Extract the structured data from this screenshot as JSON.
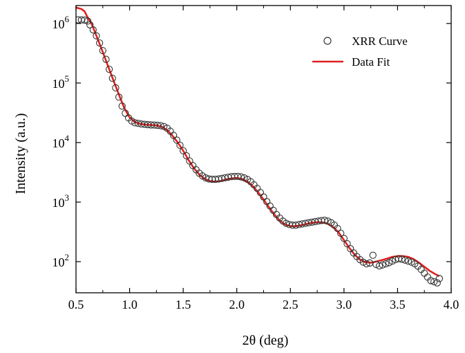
{
  "chart_data": {
    "type": "scatter",
    "xlabel": "2θ (deg)",
    "ylabel": "Intensity (a.u.)",
    "xlim": [
      0.5,
      4.0
    ],
    "ylim": [
      30,
      2000000
    ],
    "yscale": "log",
    "grid": false,
    "legend_position": "top-right",
    "x_ticks": [
      {
        "value": 0.5,
        "label": "0.5"
      },
      {
        "value": 1.0,
        "label": "1.0"
      },
      {
        "value": 1.5,
        "label": "1.5"
      },
      {
        "value": 2.0,
        "label": "2.0"
      },
      {
        "value": 2.5,
        "label": "2.5"
      },
      {
        "value": 3.0,
        "label": "3.0"
      },
      {
        "value": 3.5,
        "label": "3.5"
      },
      {
        "value": 4.0,
        "label": "4.0"
      }
    ],
    "y_ticks": [
      {
        "value": 100,
        "base": "10",
        "exp": "2"
      },
      {
        "value": 1000,
        "base": "10",
        "exp": "3"
      },
      {
        "value": 10000,
        "base": "10",
        "exp": "4"
      },
      {
        "value": 100000,
        "base": "10",
        "exp": "5"
      },
      {
        "value": 1000000,
        "base": "10",
        "exp": "6"
      }
    ],
    "series": [
      {
        "name": "XRR Curve",
        "kind": "scatter",
        "marker": "open-circle",
        "color": "#333333",
        "points": [
          [
            0.52,
            1150000
          ],
          [
            0.55,
            1150000
          ],
          [
            0.58,
            1140000
          ],
          [
            0.61,
            1100000
          ],
          [
            0.63,
            950000
          ],
          [
            0.66,
            780000
          ],
          [
            0.69,
            620000
          ],
          [
            0.72,
            470000
          ],
          [
            0.75,
            350000
          ],
          [
            0.78,
            250000
          ],
          [
            0.81,
            170000
          ],
          [
            0.84,
            120000
          ],
          [
            0.87,
            83000
          ],
          [
            0.9,
            58000
          ],
          [
            0.93,
            41000
          ],
          [
            0.96,
            31000
          ],
          [
            0.99,
            26000
          ],
          [
            1.02,
            23000
          ],
          [
            1.05,
            21500
          ],
          [
            1.08,
            21000
          ],
          [
            1.11,
            20500
          ],
          [
            1.14,
            20200
          ],
          [
            1.17,
            20000
          ],
          [
            1.2,
            19800
          ],
          [
            1.23,
            19700
          ],
          [
            1.26,
            19500
          ],
          [
            1.29,
            19200
          ],
          [
            1.32,
            18600
          ],
          [
            1.35,
            17400
          ],
          [
            1.38,
            15500
          ],
          [
            1.41,
            13200
          ],
          [
            1.44,
            11000
          ],
          [
            1.47,
            9000
          ],
          [
            1.5,
            7300
          ],
          [
            1.53,
            6000
          ],
          [
            1.56,
            4900
          ],
          [
            1.59,
            4100
          ],
          [
            1.62,
            3500
          ],
          [
            1.65,
            3050
          ],
          [
            1.68,
            2750
          ],
          [
            1.71,
            2550
          ],
          [
            1.74,
            2450
          ],
          [
            1.77,
            2420
          ],
          [
            1.8,
            2420
          ],
          [
            1.83,
            2450
          ],
          [
            1.86,
            2500
          ],
          [
            1.89,
            2560
          ],
          [
            1.92,
            2620
          ],
          [
            1.95,
            2680
          ],
          [
            1.98,
            2700
          ],
          [
            2.01,
            2700
          ],
          [
            2.04,
            2650
          ],
          [
            2.07,
            2550
          ],
          [
            2.1,
            2400
          ],
          [
            2.13,
            2200
          ],
          [
            2.16,
            1950
          ],
          [
            2.19,
            1700
          ],
          [
            2.22,
            1450
          ],
          [
            2.25,
            1220
          ],
          [
            2.28,
            1020
          ],
          [
            2.31,
            860
          ],
          [
            2.34,
            730
          ],
          [
            2.37,
            620
          ],
          [
            2.4,
            540
          ],
          [
            2.43,
            480
          ],
          [
            2.46,
            440
          ],
          [
            2.49,
            420
          ],
          [
            2.52,
            410
          ],
          [
            2.55,
            410
          ],
          [
            2.58,
            420
          ],
          [
            2.61,
            430
          ],
          [
            2.64,
            440
          ],
          [
            2.67,
            450
          ],
          [
            2.7,
            460
          ],
          [
            2.73,
            470
          ],
          [
            2.76,
            480
          ],
          [
            2.79,
            490
          ],
          [
            2.82,
            495
          ],
          [
            2.85,
            480
          ],
          [
            2.88,
            450
          ],
          [
            2.91,
            410
          ],
          [
            2.94,
            360
          ],
          [
            2.97,
            300
          ],
          [
            3.0,
            245
          ],
          [
            3.03,
            200
          ],
          [
            3.06,
            165
          ],
          [
            3.09,
            140
          ],
          [
            3.12,
            122
          ],
          [
            3.15,
            108
          ],
          [
            3.18,
            98
          ],
          [
            3.21,
            92
          ],
          [
            3.24,
            95
          ],
          [
            3.27,
            128
          ],
          [
            3.3,
            90
          ],
          [
            3.33,
            85
          ],
          [
            3.36,
            88
          ],
          [
            3.39,
            92
          ],
          [
            3.42,
            96
          ],
          [
            3.45,
            102
          ],
          [
            3.48,
            108
          ],
          [
            3.51,
            112
          ],
          [
            3.54,
            110
          ],
          [
            3.57,
            106
          ],
          [
            3.6,
            102
          ],
          [
            3.63,
            98
          ],
          [
            3.66,
            92
          ],
          [
            3.69,
            84
          ],
          [
            3.72,
            74
          ],
          [
            3.75,
            64
          ],
          [
            3.78,
            55
          ],
          [
            3.81,
            48
          ],
          [
            3.84,
            46
          ],
          [
            3.87,
            44
          ],
          [
            3.89,
            52
          ]
        ]
      },
      {
        "name": "Data Fit",
        "kind": "line",
        "color": "#e0201e",
        "points": [
          [
            0.5,
            1850000
          ],
          [
            0.55,
            1750000
          ],
          [
            0.58,
            1600000
          ],
          [
            0.6,
            1350000
          ],
          [
            0.65,
            950000
          ],
          [
            0.7,
            560000
          ],
          [
            0.75,
            330000
          ],
          [
            0.8,
            190000
          ],
          [
            0.85,
            110000
          ],
          [
            0.9,
            64000
          ],
          [
            0.95,
            38000
          ],
          [
            1.0,
            26500
          ],
          [
            1.05,
            22000
          ],
          [
            1.1,
            20500
          ],
          [
            1.15,
            20000
          ],
          [
            1.2,
            19700
          ],
          [
            1.25,
            19500
          ],
          [
            1.3,
            18500
          ],
          [
            1.35,
            16200
          ],
          [
            1.4,
            13000
          ],
          [
            1.45,
            10000
          ],
          [
            1.5,
            7300
          ],
          [
            1.55,
            5100
          ],
          [
            1.6,
            3700
          ],
          [
            1.65,
            2900
          ],
          [
            1.7,
            2450
          ],
          [
            1.75,
            2250
          ],
          [
            1.8,
            2200
          ],
          [
            1.85,
            2250
          ],
          [
            1.9,
            2400
          ],
          [
            1.95,
            2500
          ],
          [
            2.0,
            2550
          ],
          [
            2.05,
            2450
          ],
          [
            2.1,
            2200
          ],
          [
            2.15,
            1850
          ],
          [
            2.2,
            1450
          ],
          [
            2.25,
            1100
          ],
          [
            2.3,
            820
          ],
          [
            2.35,
            620
          ],
          [
            2.4,
            490
          ],
          [
            2.45,
            420
          ],
          [
            2.5,
            395
          ],
          [
            2.55,
            395
          ],
          [
            2.6,
            410
          ],
          [
            2.65,
            430
          ],
          [
            2.7,
            450
          ],
          [
            2.75,
            460
          ],
          [
            2.8,
            455
          ],
          [
            2.85,
            430
          ],
          [
            2.9,
            380
          ],
          [
            2.95,
            310
          ],
          [
            3.0,
            230
          ],
          [
            3.05,
            170
          ],
          [
            3.1,
            130
          ],
          [
            3.15,
            108
          ],
          [
            3.2,
            98
          ],
          [
            3.25,
            96
          ],
          [
            3.3,
            100
          ],
          [
            3.35,
            106
          ],
          [
            3.4,
            112
          ],
          [
            3.45,
            120
          ],
          [
            3.5,
            124
          ],
          [
            3.55,
            124
          ],
          [
            3.6,
            120
          ],
          [
            3.65,
            110
          ],
          [
            3.7,
            96
          ],
          [
            3.75,
            82
          ],
          [
            3.8,
            70
          ],
          [
            3.85,
            62
          ],
          [
            3.89,
            57
          ]
        ]
      }
    ]
  }
}
